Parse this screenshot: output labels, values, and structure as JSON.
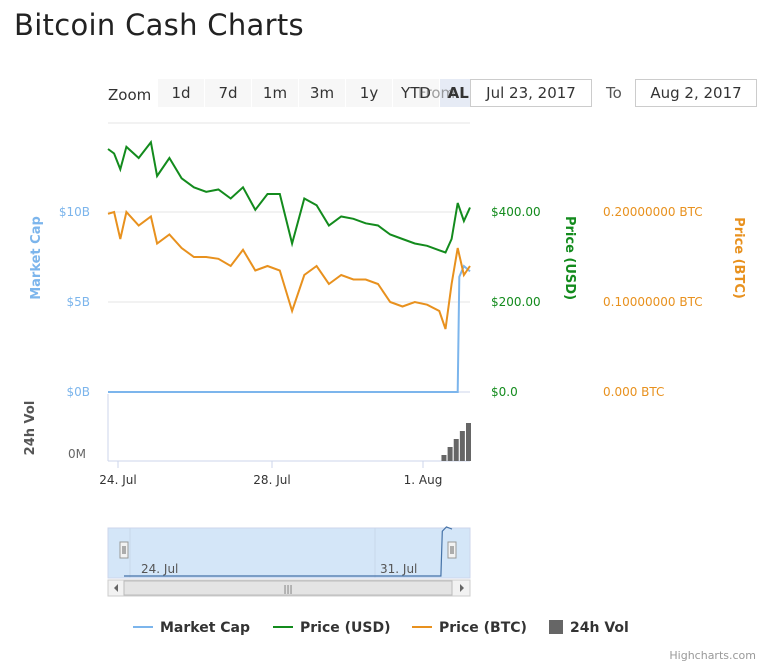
{
  "page_title": "Bitcoin Cash Charts",
  "range_selector": {
    "zoom_label": "Zoom",
    "buttons": [
      "1d",
      "7d",
      "1m",
      "3m",
      "1y",
      "YTD",
      "ALL"
    ],
    "active": "ALL",
    "from_label": "From",
    "from_value": "Jul 23, 2017",
    "to_label": "To",
    "to_value": "Aug 2, 2017"
  },
  "axis_labels": {
    "market_cap": "Market Cap",
    "price_usd": "Price (USD)",
    "price_btc": "Price (BTC)",
    "volume": "24h Vol"
  },
  "colors": {
    "market_cap": "#7cb5ec",
    "price_usd": "#138b1d",
    "price_btc": "#e8911e",
    "volume": "#666666",
    "navigator_fill": "#d4e6f8"
  },
  "chart_data": {
    "type": "line",
    "x_range": [
      "2017-07-23T16:00",
      "2017-08-02T12:00"
    ],
    "x_ticks": [
      "24. Jul",
      "28. Jul",
      "1. Aug"
    ],
    "y_axes": {
      "market_cap": {
        "ticks": [
          "$0B",
          "$5B",
          "$10B"
        ],
        "range": [
          0,
          10000000000
        ]
      },
      "price_usd": {
        "ticks": [
          "$0.0",
          "$200.00",
          "$400.00"
        ],
        "range": [
          0,
          400
        ]
      },
      "price_btc": {
        "ticks": [
          "0.000 BTC",
          "0.10000000 BTC",
          "0.20000000 BTC"
        ],
        "range": [
          0,
          0.2
        ]
      },
      "volume": {
        "ticks": [
          "0M"
        ]
      }
    },
    "series": [
      {
        "name": "Price (USD)",
        "x": [
          "2017-07-23T16:00",
          "2017-07-23T20:00",
          "2017-07-24T00:00",
          "2017-07-24T04:00",
          "2017-07-24T12:00",
          "2017-07-24T20:00",
          "2017-07-25T00:00",
          "2017-07-25T08:00",
          "2017-07-25T16:00",
          "2017-07-26T00:00",
          "2017-07-26T08:00",
          "2017-07-26T16:00",
          "2017-07-27T00:00",
          "2017-07-27T08:00",
          "2017-07-27T16:00",
          "2017-07-28T00:00",
          "2017-07-28T08:00",
          "2017-07-28T16:00",
          "2017-07-29T00:00",
          "2017-07-29T08:00",
          "2017-07-29T16:00",
          "2017-07-30T00:00",
          "2017-07-30T08:00",
          "2017-07-30T16:00",
          "2017-07-31T00:00",
          "2017-07-31T08:00",
          "2017-07-31T16:00",
          "2017-08-01T00:00",
          "2017-08-01T08:00",
          "2017-08-01T16:00",
          "2017-08-01T20:00",
          "2017-08-02T00:00",
          "2017-08-02T04:00",
          "2017-08-02T08:00",
          "2017-08-02T12:00"
        ],
        "values": [
          540,
          530,
          495,
          545,
          520,
          555,
          480,
          520,
          475,
          455,
          445,
          450,
          430,
          455,
          405,
          440,
          440,
          330,
          430,
          415,
          370,
          390,
          385,
          375,
          370,
          350,
          340,
          330,
          325,
          315,
          310,
          340,
          420,
          380,
          410
        ]
      },
      {
        "name": "Price (BTC)",
        "x": [
          "2017-07-23T16:00",
          "2017-07-23T20:00",
          "2017-07-24T00:00",
          "2017-07-24T04:00",
          "2017-07-24T12:00",
          "2017-07-24T20:00",
          "2017-07-25T00:00",
          "2017-07-25T08:00",
          "2017-07-25T16:00",
          "2017-07-26T00:00",
          "2017-07-26T08:00",
          "2017-07-26T16:00",
          "2017-07-27T00:00",
          "2017-07-27T08:00",
          "2017-07-27T16:00",
          "2017-07-28T00:00",
          "2017-07-28T08:00",
          "2017-07-28T16:00",
          "2017-07-29T00:00",
          "2017-07-29T08:00",
          "2017-07-29T16:00",
          "2017-07-30T00:00",
          "2017-07-30T08:00",
          "2017-07-30T16:00",
          "2017-07-31T00:00",
          "2017-07-31T08:00",
          "2017-07-31T16:00",
          "2017-08-01T00:00",
          "2017-08-01T08:00",
          "2017-08-01T16:00",
          "2017-08-01T20:00",
          "2017-08-02T00:00",
          "2017-08-02T04:00",
          "2017-08-02T08:00",
          "2017-08-02T12:00"
        ],
        "values": [
          0.198,
          0.2,
          0.17,
          0.2,
          0.185,
          0.195,
          0.165,
          0.175,
          0.16,
          0.15,
          0.15,
          0.148,
          0.14,
          0.158,
          0.135,
          0.14,
          0.135,
          0.09,
          0.13,
          0.14,
          0.12,
          0.13,
          0.125,
          0.125,
          0.12,
          0.1,
          0.095,
          0.1,
          0.097,
          0.09,
          0.07,
          0.12,
          0.16,
          0.13,
          0.14
        ]
      },
      {
        "name": "Market Cap",
        "x": [
          "2017-07-23T16:00",
          "2017-08-02T04:00",
          "2017-08-02T05:00",
          "2017-08-02T08:00",
          "2017-08-02T12:00"
        ],
        "values": [
          0,
          0,
          6400000000,
          7000000000,
          6700000000
        ]
      },
      {
        "name": "24h Vol",
        "x": [
          "2017-08-01T20:00",
          "2017-08-02T00:00",
          "2017-08-02T04:00",
          "2017-08-02T08:00",
          "2017-08-02T12:00"
        ],
        "values": [
          0.15,
          0.35,
          0.55,
          0.75,
          0.95
        ]
      }
    ],
    "legend": [
      "Market Cap",
      "Price (USD)",
      "Price (BTC)",
      "24h Vol"
    ],
    "legend_position": "bottom",
    "navigator": {
      "x_ticks": [
        "24. Jul",
        "31. Jul"
      ]
    }
  },
  "credits": "Highcharts.com"
}
